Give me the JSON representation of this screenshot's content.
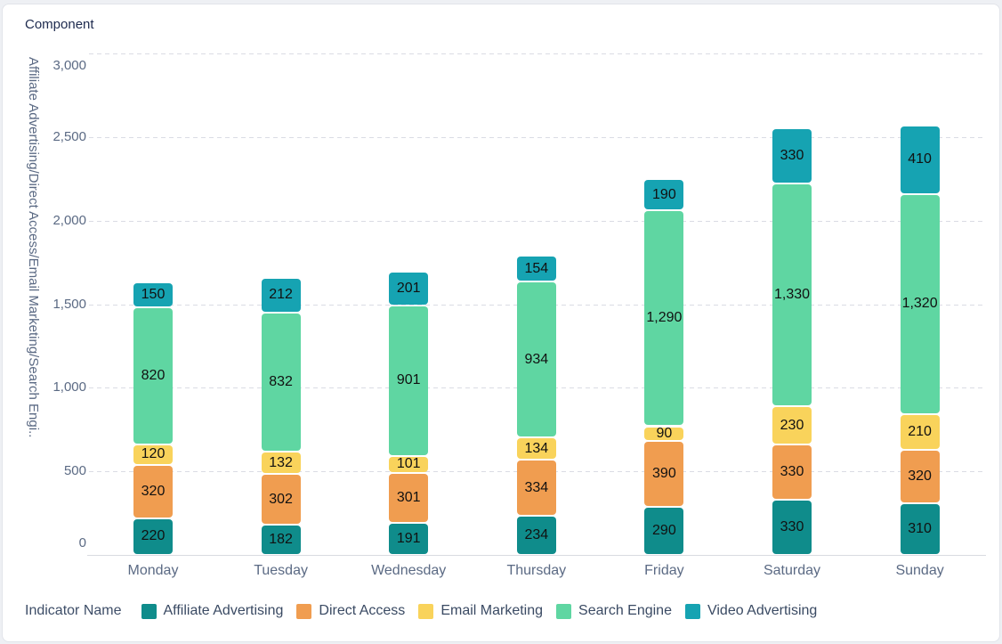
{
  "card": {
    "title": "Component"
  },
  "chart_data": {
    "type": "bar",
    "stacked": true,
    "title": "Component",
    "categories": [
      "Monday",
      "Tuesday",
      "Wednesday",
      "Thursday",
      "Friday",
      "Saturday",
      "Sunday"
    ],
    "series": [
      {
        "name": "Affiliate Advertising",
        "color": "#0f8c8b",
        "values": [
          220,
          182,
          191,
          234,
          290,
          330,
          310
        ]
      },
      {
        "name": "Direct Access",
        "color": "#f09d50",
        "values": [
          320,
          302,
          301,
          334,
          390,
          330,
          320
        ]
      },
      {
        "name": "Email Marketing",
        "color": "#f9d35b",
        "values": [
          120,
          132,
          101,
          134,
          90,
          230,
          210
        ]
      },
      {
        "name": "Search Engine",
        "color": "#5fd6a2",
        "values": [
          820,
          832,
          901,
          934,
          1290,
          1330,
          1320
        ]
      },
      {
        "name": "Video Advertising",
        "color": "#16a3b2",
        "values": [
          150,
          212,
          201,
          154,
          190,
          330,
          410
        ]
      }
    ],
    "totals": [
      1630,
      1660,
      1695,
      1790,
      2250,
      2550,
      2570
    ],
    "ylabel": "Affiliate Advertising/Direct Access/Email Marketing/Search Engi..",
    "ylim": [
      0,
      3000
    ],
    "ytick_step": 500,
    "ytick_labels": [
      "0",
      "500",
      "1,000",
      "1,500",
      "2,000",
      "2,500",
      "3,000"
    ],
    "grid": "horizontal-dashed",
    "value_labels": "inside-black",
    "legend_title": "Indicator Name",
    "legend_position": "bottom"
  }
}
